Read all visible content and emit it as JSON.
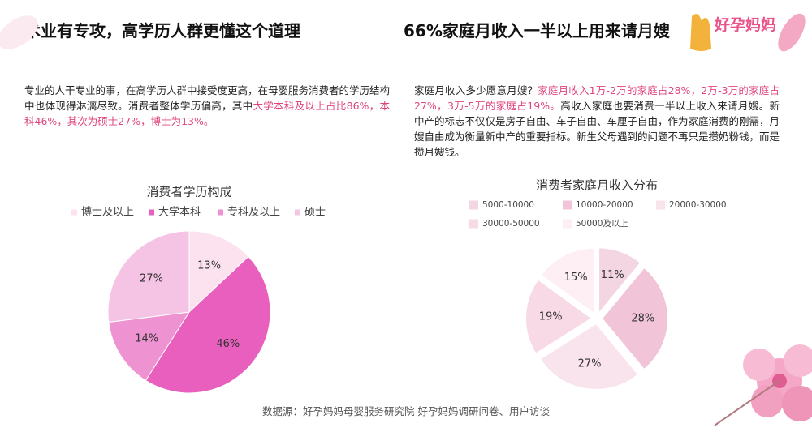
{
  "left": {
    "heading": "术业有专攻，高学历人群更懂这个道理",
    "paragraph": [
      {
        "text": "专业的人干专业的事，在高学历人群中接受度更高，在母婴服务消费者的学历结构中也体现得淋漓尽致。消费者整体学历偏高，其中",
        "highlight": false
      },
      {
        "text": "大学本科及以上占比86%，本科46%，其次为硕士27%，博士为13%。",
        "highlight": true
      }
    ]
  },
  "right": {
    "heading": "66%家庭月收入一半以上用来请月嫂",
    "paragraph": [
      {
        "text": "家庭月收入多少愿意月嫂？",
        "highlight": false
      },
      {
        "text": "家庭月收入1万-2万的家庭占28%，2万-3万的家庭占27%，3万-5万的家庭占19%。",
        "highlight": true
      },
      {
        "text": "高收入家庭也要消费一半以上收入来请月嫂。新中产的标志不仅仅是房子自由、车子自由、车厘子自由，作为家庭消费的刚需，月嫂自由成为衡量新中产的重要指标。新生父母遇到的问题不再只是攒奶粉钱，而是攒月嫂钱。",
        "highlight": false
      }
    ]
  },
  "logo": "好孕妈妈",
  "source": "数据源：好孕妈妈母婴服务研究院 好孕妈妈调研问卷、用户访谈",
  "chart_data": [
    {
      "type": "pie",
      "title": "消费者学历构成",
      "categories": [
        "博士及以上",
        "大学本科",
        "专科及以上",
        "硕士"
      ],
      "values": [
        13,
        46,
        14,
        27
      ],
      "value_labels": [
        "13%",
        "46%",
        "14%",
        "27%"
      ],
      "colors": [
        "#fbe2ee",
        "#e95fbe",
        "#ee92d1",
        "#f5c3e4"
      ],
      "exploded": false
    },
    {
      "type": "pie",
      "title": "消费者家庭月收入分布",
      "categories": [
        "5000-10000",
        "10000-20000",
        "20000-30000",
        "30000-50000",
        "50000及以上"
      ],
      "values": [
        11,
        28,
        27,
        19,
        15
      ],
      "value_labels": [
        "11%",
        "28%",
        "27%",
        "19%",
        "15%"
      ],
      "colors": [
        "#f4d6e3",
        "#f1c4d8",
        "#f9e4ed",
        "#f7dae6",
        "#fdeff4"
      ],
      "exploded": true
    }
  ]
}
